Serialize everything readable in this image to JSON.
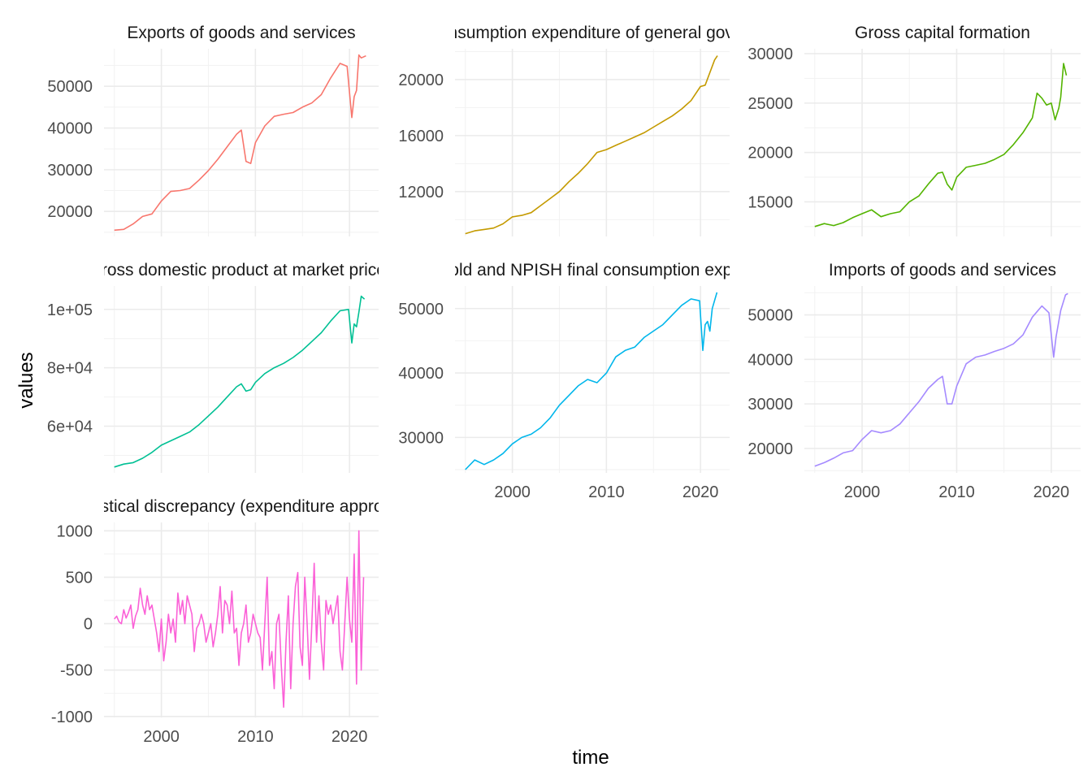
{
  "figure": {
    "xlabel": "time",
    "ylabel": "values"
  },
  "chart_data": [
    {
      "type": "line",
      "title": "Exports of goods and services",
      "color": "#F8766D",
      "xlim": [
        1993.9,
        2023.1
      ],
      "ylim": [
        14000,
        59000
      ],
      "yticks": [
        20000,
        30000,
        40000,
        50000
      ],
      "ytick_labels": [
        "20000",
        "30000",
        "40000",
        "50000"
      ],
      "show_x_labels": false,
      "x": [
        1995,
        1996,
        1997,
        1998,
        1999,
        2000,
        2001,
        2002,
        2003,
        2004,
        2005,
        2006,
        2007,
        2008,
        2008.5,
        2009,
        2009.5,
        2010,
        2011,
        2012,
        2013,
        2014,
        2015,
        2016,
        2017,
        2018,
        2019,
        2019.75,
        2020.25,
        2020.5,
        2020.75,
        2021,
        2021.25,
        2021.75
      ],
      "y": [
        15500,
        15700,
        17000,
        18800,
        19400,
        22500,
        24800,
        25000,
        25500,
        27500,
        29800,
        32500,
        35500,
        38500,
        39500,
        32000,
        31500,
        36500,
        40500,
        42800,
        43300,
        43700,
        45000,
        46000,
        48000,
        52000,
        55500,
        54800,
        42500,
        47500,
        49000,
        57500,
        56800,
        57300
      ]
    },
    {
      "type": "line",
      "title": "Final consumption expenditure of general government",
      "color": "#C49A00",
      "xlim": [
        1993.9,
        2023.1
      ],
      "ylim": [
        8800,
        22200
      ],
      "yticks": [
        12000,
        16000,
        20000
      ],
      "ytick_labels": [
        "12000",
        "16000",
        "20000"
      ],
      "show_x_labels": false,
      "x": [
        1995,
        1996,
        1997,
        1998,
        1999,
        2000,
        2001,
        2002,
        2003,
        2004,
        2005,
        2006,
        2007,
        2008,
        2009,
        2010,
        2011,
        2012,
        2013,
        2014,
        2015,
        2016,
        2017,
        2018,
        2019,
        2020,
        2020.5,
        2021,
        2021.5,
        2021.8
      ],
      "y": [
        9000,
        9200,
        9300,
        9400,
        9700,
        10200,
        10300,
        10500,
        11000,
        11500,
        12000,
        12700,
        13300,
        14000,
        14800,
        15000,
        15300,
        15600,
        15900,
        16200,
        16600,
        17000,
        17400,
        17900,
        18500,
        19500,
        19600,
        20500,
        21400,
        21700
      ]
    },
    {
      "type": "line",
      "title": "Gross capital formation",
      "color": "#53B400",
      "xlim": [
        1993.9,
        2023.1
      ],
      "ylim": [
        11500,
        30500
      ],
      "yticks": [
        15000,
        20000,
        25000,
        30000
      ],
      "ytick_labels": [
        "15000",
        "20000",
        "25000",
        "30000"
      ],
      "show_x_labels": false,
      "x": [
        1995,
        1996,
        1997,
        1998,
        1999,
        2000,
        2001,
        2002,
        2003,
        2004,
        2005,
        2006,
        2007,
        2008,
        2008.5,
        2009,
        2009.5,
        2010,
        2011,
        2012,
        2013,
        2014,
        2015,
        2016,
        2017,
        2018,
        2018.5,
        2019,
        2019.5,
        2020,
        2020.4,
        2020.8,
        2021,
        2021.3,
        2021.6
      ],
      "y": [
        12500,
        12800,
        12600,
        12900,
        13400,
        13800,
        14200,
        13500,
        13800,
        14000,
        15000,
        15600,
        16800,
        17900,
        18000,
        16800,
        16200,
        17500,
        18500,
        18700,
        18900,
        19300,
        19800,
        20800,
        22000,
        23500,
        26000,
        25500,
        24800,
        25000,
        23300,
        24500,
        25600,
        29000,
        27800
      ]
    },
    {
      "type": "line",
      "title": "Gross domestic product at market prices",
      "color": "#00C094",
      "xlim": [
        1993.9,
        2023.1
      ],
      "ylim": [
        44000,
        108000
      ],
      "yticks": [
        60000,
        80000,
        100000
      ],
      "ytick_labels": [
        "6e+04",
        "8e+04",
        "1e+05"
      ],
      "show_x_labels": false,
      "x": [
        1995,
        1996,
        1997,
        1998,
        1999,
        2000,
        2001,
        2002,
        2003,
        2004,
        2005,
        2006,
        2007,
        2008,
        2008.5,
        2009,
        2009.5,
        2010,
        2011,
        2012,
        2013,
        2014,
        2015,
        2016,
        2017,
        2018,
        2019,
        2019.9,
        2020.25,
        2020.5,
        2020.75,
        2021,
        2021.25,
        2021.6
      ],
      "y": [
        46000,
        47000,
        47500,
        49000,
        51000,
        53500,
        55000,
        56500,
        58000,
        60500,
        63500,
        66500,
        70000,
        73500,
        74500,
        72000,
        72500,
        75000,
        78000,
        80000,
        81500,
        83500,
        86000,
        89000,
        92000,
        96000,
        99500,
        100000,
        88500,
        95000,
        94000,
        99000,
        104500,
        103500
      ]
    },
    {
      "type": "line",
      "title": "Household and NPISH final consumption expenditure",
      "color": "#00B6EB",
      "xlim": [
        1993.9,
        2023.1
      ],
      "ylim": [
        24500,
        53500
      ],
      "yticks": [
        30000,
        40000,
        50000
      ],
      "ytick_labels": [
        "30000",
        "40000",
        "50000"
      ],
      "show_x_labels": true,
      "xticks": [
        2000,
        2010,
        2020
      ],
      "xtick_labels": [
        "2000",
        "2010",
        "2020"
      ],
      "x": [
        1995,
        1996,
        1997,
        1998,
        1999,
        2000,
        2001,
        2002,
        2003,
        2004,
        2005,
        2006,
        2007,
        2008,
        2009,
        2010,
        2011,
        2012,
        2013,
        2014,
        2015,
        2016,
        2017,
        2018,
        2019,
        2019.9,
        2020.25,
        2020.5,
        2020.75,
        2021,
        2021.25,
        2021.75
      ],
      "y": [
        25000,
        26500,
        25800,
        26500,
        27500,
        29000,
        30000,
        30500,
        31500,
        33000,
        35000,
        36500,
        38000,
        39000,
        38500,
        40000,
        42500,
        43500,
        44000,
        45500,
        46500,
        47500,
        49000,
        50500,
        51500,
        51200,
        43500,
        47500,
        48000,
        46500,
        50000,
        52500
      ]
    },
    {
      "type": "line",
      "title": "Imports of goods and services",
      "color": "#A58AFF",
      "xlim": [
        1993.9,
        2023.1
      ],
      "ylim": [
        14500,
        56500
      ],
      "yticks": [
        20000,
        30000,
        40000,
        50000
      ],
      "ytick_labels": [
        "20000",
        "30000",
        "40000",
        "50000"
      ],
      "show_x_labels": true,
      "xticks": [
        2000,
        2010,
        2020
      ],
      "xtick_labels": [
        "2000",
        "2010",
        "2020"
      ],
      "x": [
        1995,
        1996,
        1997,
        1998,
        1999,
        2000,
        2001,
        2002,
        2003,
        2004,
        2005,
        2006,
        2007,
        2008,
        2008.5,
        2009,
        2009.5,
        2010,
        2011,
        2012,
        2013,
        2014,
        2015,
        2016,
        2017,
        2018,
        2019,
        2019.75,
        2020.25,
        2020.5,
        2020.75,
        2021,
        2021.5,
        2021.75
      ],
      "y": [
        16000,
        16800,
        17800,
        19000,
        19500,
        22000,
        24000,
        23500,
        24000,
        25500,
        28000,
        30500,
        33500,
        35500,
        36200,
        30000,
        30000,
        34000,
        39000,
        40500,
        41000,
        41800,
        42500,
        43500,
        45500,
        49500,
        52000,
        50500,
        40500,
        45000,
        48000,
        51000,
        54500,
        54800
      ]
    },
    {
      "type": "line",
      "title": "Statistical discrepancy (expenditure approach)",
      "color": "#FB61D7",
      "xlim": [
        1993.9,
        2023.1
      ],
      "ylim": [
        -1010,
        1090
      ],
      "yticks": [
        -1000,
        -500,
        0,
        500,
        1000
      ],
      "ytick_labels": [
        "-1000",
        "-500",
        "0",
        "500",
        "1000"
      ],
      "show_x_labels": true,
      "xticks": [
        2000,
        2010,
        2020
      ],
      "xtick_labels": [
        "2000",
        "2010",
        "2020"
      ],
      "x": [
        1995,
        1995.25,
        1995.5,
        1995.75,
        1996,
        1996.25,
        1996.5,
        1996.75,
        1997,
        1997.25,
        1997.5,
        1997.75,
        1998,
        1998.25,
        1998.5,
        1998.75,
        1999,
        1999.25,
        1999.5,
        1999.75,
        2000,
        2000.25,
        2000.5,
        2000.75,
        2001,
        2001.25,
        2001.5,
        2001.75,
        2002,
        2002.25,
        2002.5,
        2002.75,
        2003,
        2003.25,
        2003.5,
        2003.75,
        2004,
        2004.25,
        2004.5,
        2004.75,
        2005,
        2005.25,
        2005.5,
        2005.75,
        2006,
        2006.25,
        2006.5,
        2006.75,
        2007,
        2007.25,
        2007.5,
        2007.75,
        2008,
        2008.25,
        2008.5,
        2008.75,
        2009,
        2009.25,
        2009.5,
        2009.75,
        2010,
        2010.25,
        2010.5,
        2010.75,
        2011,
        2011.25,
        2011.5,
        2011.75,
        2012,
        2012.25,
        2012.5,
        2012.75,
        2013,
        2013.25,
        2013.5,
        2013.75,
        2014,
        2014.25,
        2014.5,
        2014.75,
        2015,
        2015.25,
        2015.5,
        2015.75,
        2016,
        2016.25,
        2016.5,
        2016.75,
        2017,
        2017.25,
        2017.5,
        2017.75,
        2018,
        2018.25,
        2018.5,
        2018.75,
        2019,
        2019.25,
        2019.5,
        2019.75,
        2020,
        2020.25,
        2020.5,
        2020.75,
        2021,
        2021.25,
        2021.5
      ],
      "y": [
        50,
        80,
        20,
        0,
        150,
        60,
        120,
        200,
        -50,
        80,
        150,
        380,
        200,
        100,
        300,
        150,
        200,
        50,
        -100,
        -300,
        50,
        -400,
        -200,
        100,
        -100,
        50,
        -200,
        330,
        100,
        250,
        0,
        300,
        200,
        100,
        -300,
        -50,
        0,
        100,
        0,
        -200,
        -100,
        0,
        -250,
        -100,
        100,
        400,
        -100,
        250,
        200,
        0,
        350,
        -100,
        -50,
        -450,
        -100,
        0,
        200,
        -200,
        -100,
        100,
        0,
        -100,
        -150,
        -500,
        0,
        500,
        -450,
        -300,
        -700,
        0,
        100,
        -450,
        -900,
        -200,
        300,
        -700,
        0,
        400,
        550,
        -250,
        -450,
        500,
        0,
        -600,
        0,
        650,
        -200,
        300,
        -200,
        -500,
        250,
        100,
        200,
        0,
        150,
        300,
        -300,
        -500,
        0,
        500,
        50,
        -200,
        750,
        -650,
        1000,
        -500,
        500
      ]
    }
  ]
}
